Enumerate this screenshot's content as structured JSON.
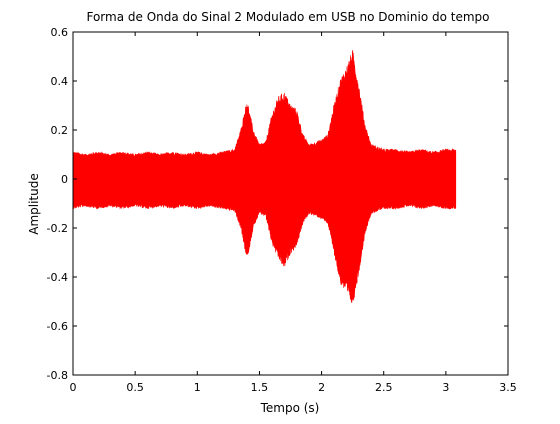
{
  "chart_data": {
    "type": "area",
    "title": "Forma de Onda do Sinal 2 Modulado em USB no Dominio do tempo",
    "xlabel": "Tempo (s)",
    "ylabel": "Amplitude",
    "xlim": [
      0,
      3.5
    ],
    "ylim": [
      -0.8,
      0.6
    ],
    "xticks": [
      0,
      0.5,
      1,
      1.5,
      2,
      2.5,
      3,
      3.5
    ],
    "xtick_labels": [
      "0",
      "0.5",
      "1",
      "1.5",
      "2",
      "2.5",
      "3",
      "3.5"
    ],
    "yticks": [
      -0.8,
      -0.6,
      -0.4,
      -0.2,
      0,
      0.2,
      0.4,
      0.6
    ],
    "ytick_labels": [
      "-0.8",
      "-0.6",
      "-0.4",
      "-0.2",
      "0",
      "0.2",
      "0.4",
      "0.6"
    ],
    "grid": false,
    "legend": "none",
    "series_color": "#ff0000",
    "envelope": {
      "t": [
        0.0,
        0.1,
        0.2,
        0.3,
        0.4,
        0.5,
        0.6,
        0.7,
        0.8,
        0.9,
        1.0,
        1.1,
        1.2,
        1.3,
        1.35,
        1.4,
        1.45,
        1.5,
        1.55,
        1.6,
        1.65,
        1.7,
        1.75,
        1.8,
        1.85,
        1.9,
        1.95,
        2.0,
        2.05,
        2.1,
        2.15,
        2.2,
        2.25,
        2.3,
        2.35,
        2.4,
        2.5,
        2.6,
        2.7,
        2.8,
        2.9,
        3.0,
        3.08
      ],
      "upper": [
        0.11,
        0.1,
        0.11,
        0.1,
        0.11,
        0.1,
        0.11,
        0.1,
        0.11,
        0.1,
        0.11,
        0.1,
        0.11,
        0.12,
        0.2,
        0.32,
        0.2,
        0.14,
        0.15,
        0.26,
        0.33,
        0.35,
        0.3,
        0.28,
        0.18,
        0.14,
        0.15,
        0.16,
        0.18,
        0.3,
        0.4,
        0.45,
        0.52,
        0.38,
        0.22,
        0.14,
        0.12,
        0.12,
        0.11,
        0.12,
        0.11,
        0.12,
        0.12
      ],
      "lower": [
        -0.12,
        -0.11,
        -0.12,
        -0.11,
        -0.12,
        -0.11,
        -0.12,
        -0.11,
        -0.12,
        -0.11,
        -0.12,
        -0.11,
        -0.12,
        -0.13,
        -0.2,
        -0.33,
        -0.2,
        -0.14,
        -0.15,
        -0.26,
        -0.32,
        -0.36,
        -0.3,
        -0.27,
        -0.18,
        -0.14,
        -0.15,
        -0.16,
        -0.18,
        -0.3,
        -0.42,
        -0.46,
        -0.51,
        -0.38,
        -0.22,
        -0.14,
        -0.12,
        -0.12,
        -0.11,
        -0.12,
        -0.11,
        -0.12,
        -0.12
      ]
    }
  }
}
